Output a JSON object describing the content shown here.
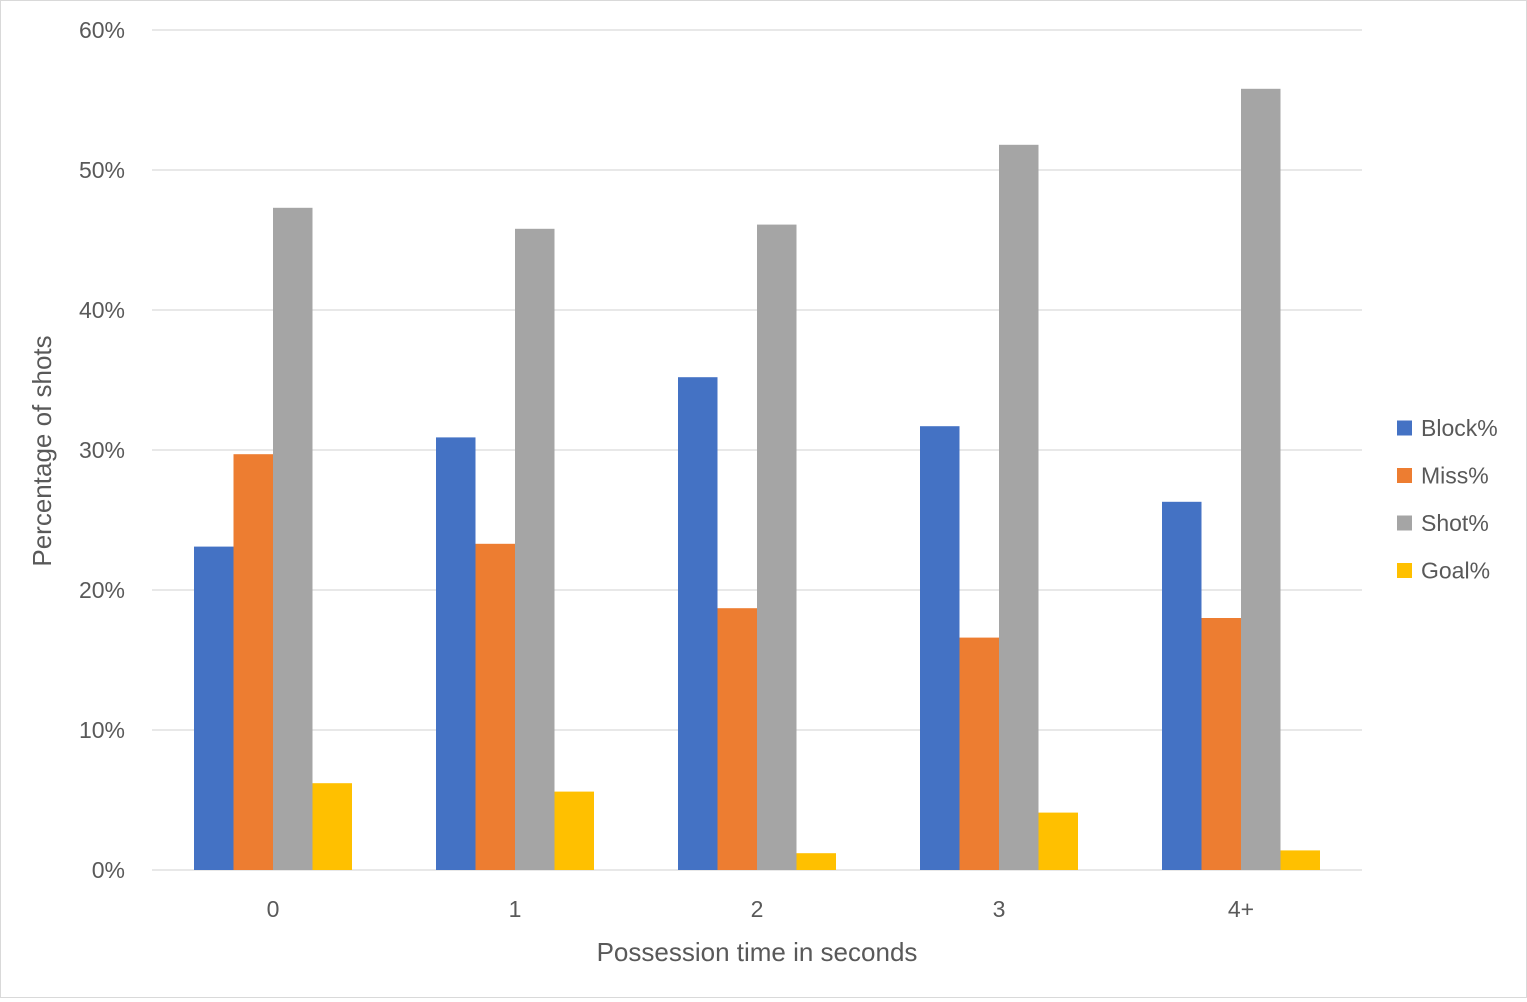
{
  "chart_data": {
    "type": "bar",
    "title": "",
    "xlabel": "Possession time in seconds",
    "ylabel": "Percentage of shots",
    "categories": [
      "0",
      "1",
      "2",
      "3",
      "4+"
    ],
    "series": [
      {
        "name": "Block%",
        "color": "#4472C4",
        "values": [
          23.1,
          30.9,
          35.2,
          31.7,
          26.3
        ]
      },
      {
        "name": "Miss%",
        "color": "#ED7D31",
        "values": [
          29.7,
          23.3,
          18.7,
          16.6,
          18.0
        ]
      },
      {
        "name": "Shot%",
        "color": "#A5A5A5",
        "values": [
          47.3,
          45.8,
          46.1,
          51.8,
          55.8
        ]
      },
      {
        "name": "Goal%",
        "color": "#FFC000",
        "values": [
          6.2,
          5.6,
          1.2,
          4.1,
          1.4
        ]
      }
    ],
    "ylim": [
      0,
      60
    ],
    "yticks": [
      0,
      10,
      20,
      30,
      40,
      50,
      60
    ],
    "ytick_labels": [
      "0%",
      "10%",
      "20%",
      "30%",
      "40%",
      "50%",
      "60%"
    ],
    "grid": true,
    "gridline_color": "#d9d9d9",
    "legend_position": "right"
  }
}
